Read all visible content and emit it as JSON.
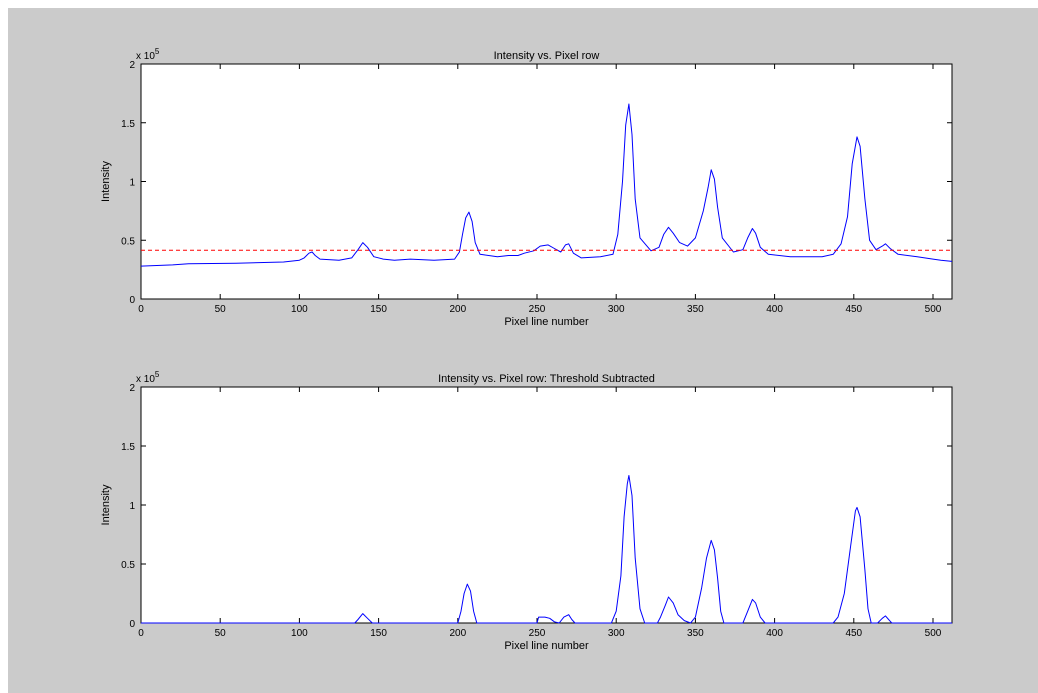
{
  "figure": {
    "background": "#cbcbcb",
    "plot_background": "#ffffff"
  },
  "chart_data": [
    {
      "type": "line",
      "title": "Intensity vs. Pixel row",
      "xlabel": "Pixel line number",
      "ylabel": "Intensity",
      "xlim": [
        0,
        512
      ],
      "ylim": [
        0,
        200000
      ],
      "x_ticks": [
        "0",
        "50",
        "100",
        "150",
        "200",
        "250",
        "300",
        "350",
        "400",
        "450",
        "500"
      ],
      "x_tick_values": [
        0,
        50,
        100,
        150,
        200,
        250,
        300,
        350,
        400,
        450,
        500
      ],
      "y_ticks": [
        "0",
        "0.5",
        "1",
        "1.5",
        "2"
      ],
      "y_tick_values": [
        0,
        50000,
        100000,
        150000,
        200000
      ],
      "y_multiplier_base": "x 10",
      "y_multiplier_exp": "5",
      "grid": false,
      "series": [
        {
          "color": "#0000ff",
          "style": "solid",
          "points": [
            [
              0,
              28000
            ],
            [
              20,
              29000
            ],
            [
              30,
              30000
            ],
            [
              60,
              30500
            ],
            [
              90,
              31500
            ],
            [
              100,
              33000
            ],
            [
              103,
              35000
            ],
            [
              106,
              39000
            ],
            [
              108,
              40000
            ],
            [
              110,
              37000
            ],
            [
              113,
              34000
            ],
            [
              125,
              33000
            ],
            [
              133,
              35000
            ],
            [
              137,
              42000
            ],
            [
              140,
              48000
            ],
            [
              143,
              44000
            ],
            [
              147,
              36000
            ],
            [
              153,
              34000
            ],
            [
              160,
              33000
            ],
            [
              170,
              34000
            ],
            [
              185,
              33000
            ],
            [
              198,
              34000
            ],
            [
              201,
              40000
            ],
            [
              203,
              55000
            ],
            [
              205,
              69000
            ],
            [
              207,
              74000
            ],
            [
              209,
              66000
            ],
            [
              211,
              48000
            ],
            [
              214,
              38000
            ],
            [
              225,
              36000
            ],
            [
              232,
              37000
            ],
            [
              238,
              37000
            ],
            [
              242,
              39000
            ],
            [
              248,
              41000
            ],
            [
              252,
              45000
            ],
            [
              257,
              46000
            ],
            [
              261,
              43000
            ],
            [
              265,
              40000
            ],
            [
              268,
              46000
            ],
            [
              270,
              47000
            ],
            [
              273,
              39000
            ],
            [
              278,
              35000
            ],
            [
              290,
              36000
            ],
            [
              298,
              38000
            ],
            [
              301,
              55000
            ],
            [
              304,
              100000
            ],
            [
              306,
              148000
            ],
            [
              308,
              166000
            ],
            [
              310,
              140000
            ],
            [
              312,
              85000
            ],
            [
              315,
              52000
            ],
            [
              322,
              41000
            ],
            [
              327,
              44000
            ],
            [
              330,
              55000
            ],
            [
              333,
              61000
            ],
            [
              336,
              56000
            ],
            [
              340,
              48000
            ],
            [
              345,
              45000
            ],
            [
              350,
              52000
            ],
            [
              355,
              75000
            ],
            [
              358,
              95000
            ],
            [
              360,
              110000
            ],
            [
              362,
              102000
            ],
            [
              364,
              78000
            ],
            [
              367,
              52000
            ],
            [
              374,
              40000
            ],
            [
              380,
              42000
            ],
            [
              383,
              52000
            ],
            [
              386,
              60000
            ],
            [
              388,
              56000
            ],
            [
              391,
              44000
            ],
            [
              396,
              38000
            ],
            [
              410,
              36000
            ],
            [
              430,
              36000
            ],
            [
              437,
              38000
            ],
            [
              442,
              47000
            ],
            [
              446,
              70000
            ],
            [
              449,
              115000
            ],
            [
              452,
              138000
            ],
            [
              454,
              130000
            ],
            [
              457,
              85000
            ],
            [
              460,
              50000
            ],
            [
              464,
              42000
            ],
            [
              468,
              45000
            ],
            [
              470,
              47000
            ],
            [
              473,
              43000
            ],
            [
              478,
              38000
            ],
            [
              490,
              36000
            ],
            [
              500,
              34000
            ],
            [
              505,
              33000
            ],
            [
              512,
              32000
            ]
          ]
        },
        {
          "color": "#ff0000",
          "style": "dashed",
          "points": [
            [
              0,
              41500
            ],
            [
              512,
              41500
            ]
          ]
        }
      ]
    },
    {
      "type": "line",
      "title": "Intensity vs. Pixel row: Threshold Subtracted",
      "xlabel": "Pixel line number",
      "ylabel": "Intensity",
      "xlim": [
        0,
        512
      ],
      "ylim": [
        0,
        200000
      ],
      "x_ticks": [
        "0",
        "50",
        "100",
        "150",
        "200",
        "250",
        "300",
        "350",
        "400",
        "450",
        "500"
      ],
      "x_tick_values": [
        0,
        50,
        100,
        150,
        200,
        250,
        300,
        350,
        400,
        450,
        500
      ],
      "y_ticks": [
        "0",
        "0.5",
        "1",
        "1.5",
        "2"
      ],
      "y_tick_values": [
        0,
        50000,
        100000,
        150000,
        200000
      ],
      "y_multiplier_base": "x 10",
      "y_multiplier_exp": "5",
      "grid": false,
      "series": [
        {
          "color": "#0000ff",
          "style": "solid",
          "points": [
            [
              0,
              0
            ],
            [
              135,
              0
            ],
            [
              137,
              3000
            ],
            [
              140,
              8000
            ],
            [
              143,
              4000
            ],
            [
              146,
              0
            ],
            [
              200,
              0
            ],
            [
              202,
              10000
            ],
            [
              204,
              25000
            ],
            [
              206,
              33000
            ],
            [
              208,
              27000
            ],
            [
              210,
              10000
            ],
            [
              212,
              0
            ],
            [
              250,
              0
            ],
            [
              251,
              5000
            ],
            [
              255,
              5000
            ],
            [
              258,
              4000
            ],
            [
              261,
              1000
            ],
            [
              264,
              0
            ],
            [
              267,
              5000
            ],
            [
              270,
              7000
            ],
            [
              272,
              3000
            ],
            [
              274,
              0
            ],
            [
              297,
              0
            ],
            [
              300,
              10000
            ],
            [
              303,
              40000
            ],
            [
              305,
              90000
            ],
            [
              307,
              118000
            ],
            [
              308,
              125000
            ],
            [
              310,
              108000
            ],
            [
              312,
              55000
            ],
            [
              315,
              12000
            ],
            [
              318,
              0
            ],
            [
              326,
              0
            ],
            [
              328,
              5000
            ],
            [
              331,
              15000
            ],
            [
              333,
              22000
            ],
            [
              336,
              17000
            ],
            [
              339,
              7000
            ],
            [
              343,
              2000
            ],
            [
              347,
              0
            ],
            [
              350,
              5000
            ],
            [
              354,
              30000
            ],
            [
              357,
              55000
            ],
            [
              360,
              70000
            ],
            [
              362,
              62000
            ],
            [
              364,
              38000
            ],
            [
              366,
              10000
            ],
            [
              368,
              0
            ],
            [
              380,
              0
            ],
            [
              383,
              10000
            ],
            [
              386,
              20000
            ],
            [
              388,
              17000
            ],
            [
              391,
              5000
            ],
            [
              394,
              0
            ],
            [
              437,
              0
            ],
            [
              440,
              5000
            ],
            [
              444,
              25000
            ],
            [
              448,
              65000
            ],
            [
              451,
              95000
            ],
            [
              452,
              98000
            ],
            [
              454,
              90000
            ],
            [
              457,
              45000
            ],
            [
              459,
              12000
            ],
            [
              461,
              0
            ],
            [
              465,
              0
            ],
            [
              468,
              4000
            ],
            [
              470,
              6000
            ],
            [
              472,
              3000
            ],
            [
              474,
              0
            ],
            [
              512,
              0
            ]
          ]
        }
      ]
    }
  ]
}
